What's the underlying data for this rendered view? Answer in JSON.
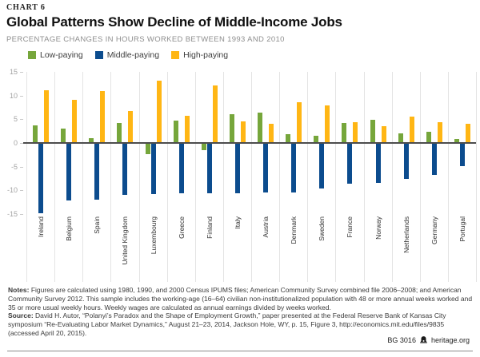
{
  "kicker": "CHART 6",
  "title": "Global Patterns Show Decline of Middle-Income Jobs",
  "subtitle": "PERCENTAGE CHANGES IN HOURS WORKED BETWEEN 1993 AND 2010",
  "chart_data": {
    "type": "bar",
    "categories": [
      "Ireland",
      "Belgium",
      "Spain",
      "United Kingdom",
      "Luxembourg",
      "Greece",
      "Finland",
      "Italy",
      "Austria",
      "Denmark",
      "Sweden",
      "France",
      "Norway",
      "Netherlands",
      "Germany",
      "Portugal"
    ],
    "series": [
      {
        "name": "Low-paying",
        "color": "#76A63B",
        "values": [
          3.7,
          3.0,
          1.0,
          4.2,
          -2.4,
          4.8,
          -1.5,
          6.1,
          6.4,
          1.8,
          1.5,
          4.2,
          4.9,
          2.1,
          2.3,
          0.8
        ]
      },
      {
        "name": "Middle-paying",
        "color": "#0C4C8E",
        "values": [
          -14.9,
          -12.1,
          -11.9,
          -10.9,
          -10.8,
          -10.7,
          -10.6,
          -10.6,
          -10.4,
          -10.5,
          -9.6,
          -8.6,
          -8.5,
          -7.6,
          -6.7,
          -4.9
        ]
      },
      {
        "name": "High-paying",
        "color": "#FFB614",
        "values": [
          11.2,
          9.1,
          10.9,
          6.8,
          13.2,
          5.8,
          12.1,
          4.5,
          4.0,
          8.6,
          8.0,
          4.4,
          3.6,
          5.5,
          4.4,
          4.1
        ]
      }
    ],
    "ylim": [
      -15,
      15
    ],
    "yticks": [
      15,
      10,
      5,
      0,
      -5,
      -10,
      -15
    ],
    "grid": "vertical-only",
    "legend_position": "top-left",
    "colors_meta": {
      "gridline": "#E4E4E4",
      "zero_axis": "#4D4D4D",
      "tick_label": "#A3A3A3"
    }
  },
  "notes": {
    "label": "Notes:",
    "text": "Figures are calculated using 1980, 1990, and 2000 Census IPUMS files; American Community Survey combined file 2006–2008; and American Community Survey 2012. This sample includes the working-age (16–64) civilian non-institutionalized population with 48 or more annual weeks worked and 35 or more usual weekly hours. Weekly wages are calculated as annual earnings divided by weeks worked."
  },
  "source": {
    "label": "Source:",
    "text": "David H. Autor, “Polanyi’s Paradox and the Shape of Employment Growth,” paper presented at the Federal Reserve Bank of Kansas City symposium “Re-Evaluating Labor Market Dynamics,” August 21–23, 2014, Jackson Hole, WY, p. 15, Figure 3, http://economics.mit.edu/files/9835 (accessed April 20, 2015)."
  },
  "footer": {
    "doc_id": "BG 3016",
    "site": "heritage.org"
  }
}
